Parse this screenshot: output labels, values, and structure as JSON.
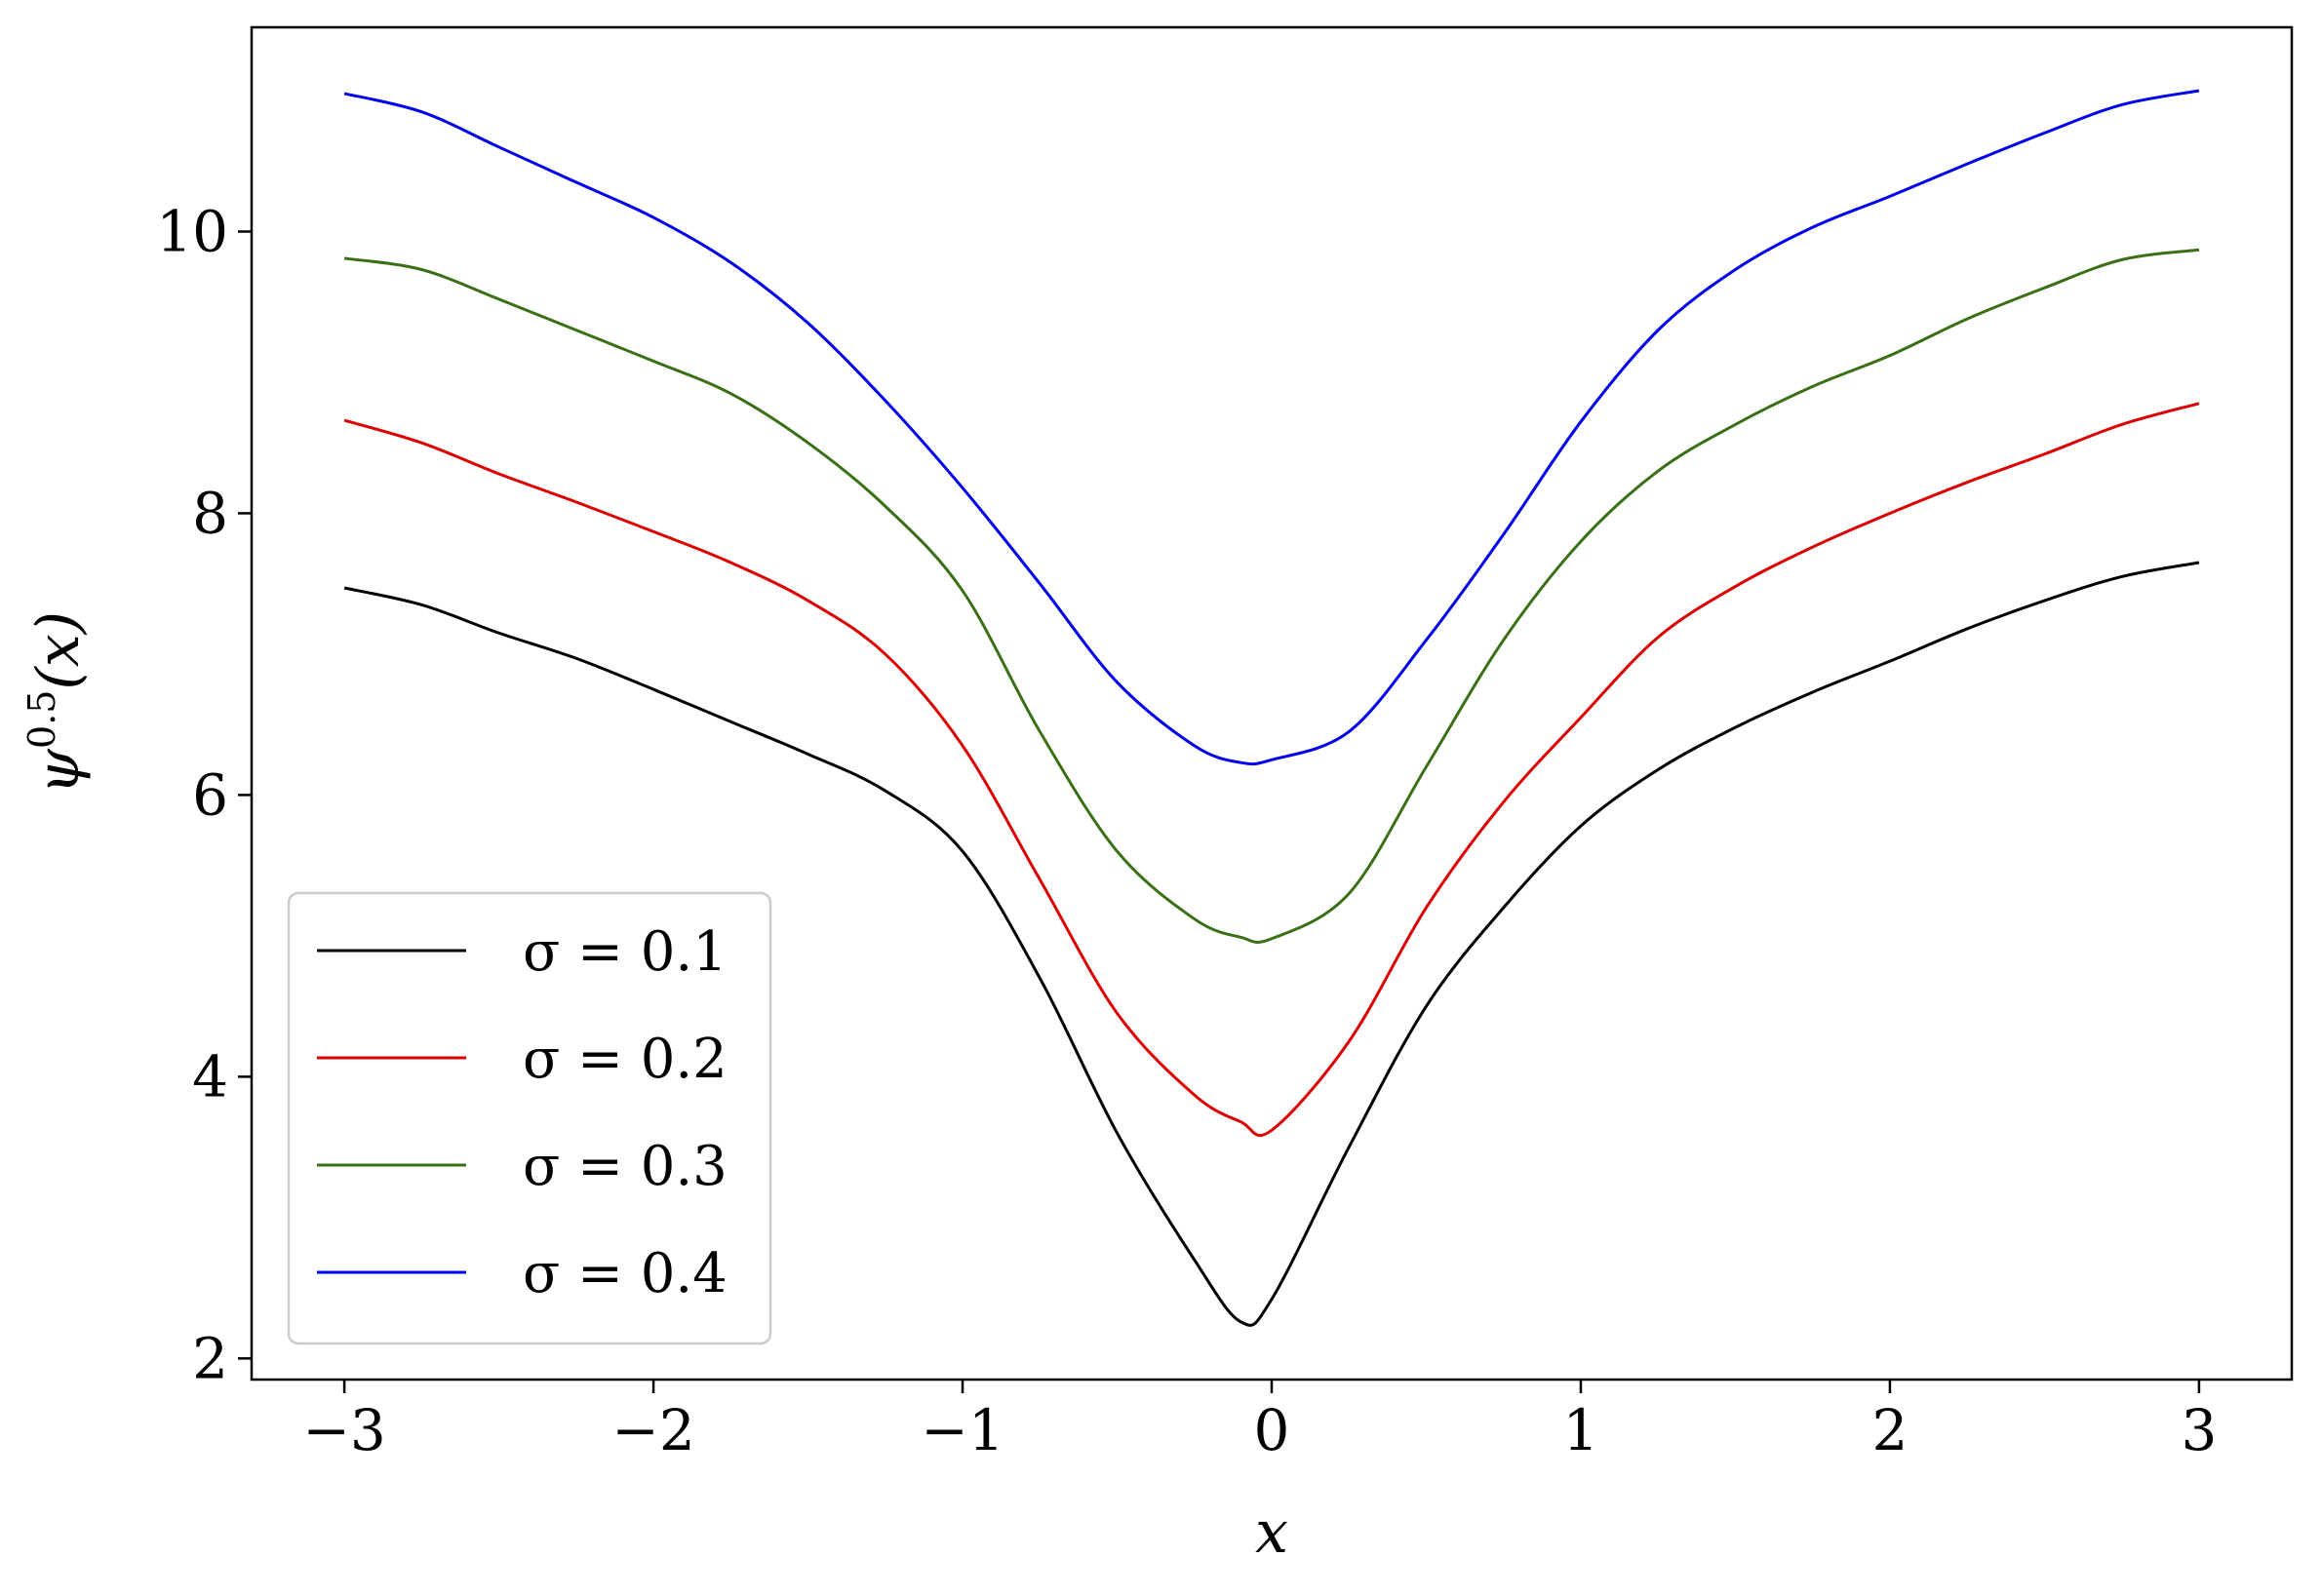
{
  "chart_data": {
    "type": "line",
    "xlabel": "x",
    "ylabel": "ψ^0.5(x)",
    "ylabel_base": "ψ",
    "ylabel_exp": "0.5",
    "ylabel_arg": "(x)",
    "xlim": [
      -3.3,
      3.3
    ],
    "ylim": [
      1.85,
      11.45
    ],
    "xticks": [
      -3,
      -2,
      -1,
      0,
      1,
      2,
      3
    ],
    "xtick_labels": [
      "−3",
      "−2",
      "−1",
      "0",
      "1",
      "2",
      "3"
    ],
    "yticks": [
      2,
      4,
      6,
      8,
      10
    ],
    "ytick_labels": [
      "2",
      "4",
      "6",
      "8",
      "10"
    ],
    "grid": false,
    "legend_position": "lower-left",
    "x": [
      -3.0,
      -2.75,
      -2.5,
      -2.25,
      -2.0,
      -1.75,
      -1.5,
      -1.25,
      -1.0,
      -0.75,
      -0.5,
      -0.25,
      -0.1,
      0.0,
      0.25,
      0.5,
      0.75,
      1.0,
      1.25,
      1.5,
      1.75,
      2.0,
      2.25,
      2.5,
      2.75,
      3.0
    ],
    "series": [
      {
        "name": "σ = 0.1",
        "color": "#000000",
        "values": [
          7.47,
          7.35,
          7.15,
          6.97,
          6.75,
          6.52,
          6.29,
          6.03,
          5.6,
          4.7,
          3.6,
          2.7,
          2.26,
          2.42,
          3.5,
          4.5,
          5.2,
          5.78,
          6.18,
          6.48,
          6.73,
          6.95,
          7.18,
          7.38,
          7.55,
          7.65
        ]
      },
      {
        "name": "σ = 0.2",
        "color": "#dd0000",
        "values": [
          8.66,
          8.5,
          8.28,
          8.08,
          7.87,
          7.65,
          7.38,
          7.0,
          6.35,
          5.4,
          4.45,
          3.87,
          3.68,
          3.62,
          4.25,
          5.2,
          5.95,
          6.55,
          7.12,
          7.48,
          7.76,
          8.0,
          8.22,
          8.42,
          8.63,
          8.78
        ]
      },
      {
        "name": "σ = 0.3",
        "color": "#3a7015",
        "values": [
          9.81,
          9.73,
          9.52,
          9.3,
          9.08,
          8.85,
          8.5,
          8.05,
          7.45,
          6.45,
          5.6,
          5.12,
          4.99,
          4.98,
          5.3,
          6.2,
          7.1,
          7.8,
          8.3,
          8.63,
          8.9,
          9.12,
          9.38,
          9.6,
          9.8,
          9.87
        ]
      },
      {
        "name": "σ = 0.4",
        "color": "#0000ee",
        "values": [
          10.98,
          10.85,
          10.6,
          10.35,
          10.1,
          9.78,
          9.35,
          8.8,
          8.18,
          7.5,
          6.8,
          6.35,
          6.23,
          6.25,
          6.45,
          7.1,
          7.85,
          8.65,
          9.3,
          9.73,
          10.03,
          10.25,
          10.48,
          10.7,
          10.9,
          11.0
        ]
      }
    ]
  }
}
